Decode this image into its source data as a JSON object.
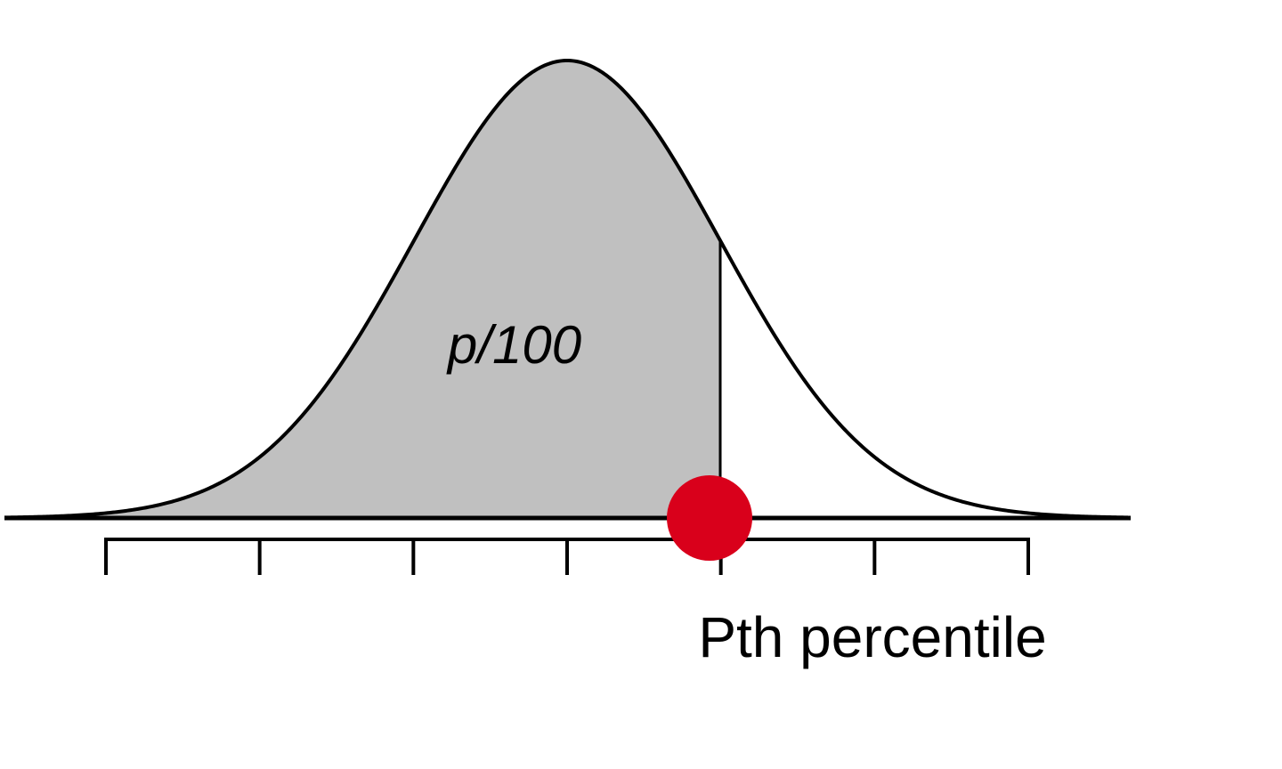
{
  "diagram": {
    "area_label": "p/100",
    "percentile_label": "Pth percentile",
    "colors": {
      "shaded_area": "#c0c0c0",
      "curve": "#000000",
      "marker": "#d9001b",
      "background": "#ffffff"
    },
    "distribution": "normal",
    "shaded_side": "left",
    "percentile_z": 1.0,
    "tick_count": 7
  }
}
